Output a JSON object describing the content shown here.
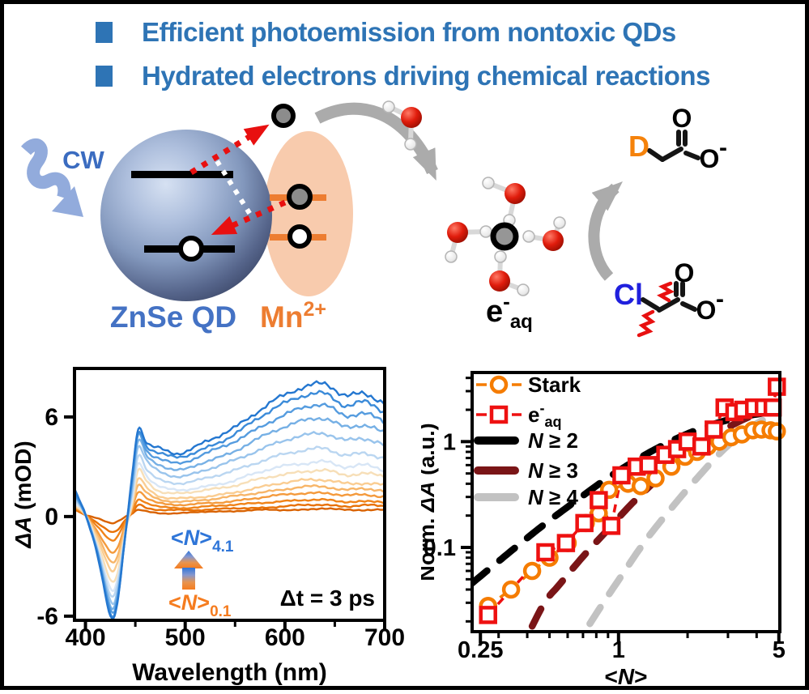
{
  "header": {
    "bullet_color": "#2E74B5",
    "items": [
      "Efficient photoemission from nontoxic QDs",
      "Hydrated electrons driving chemical reactions"
    ]
  },
  "diagram": {
    "cw_label": "CW",
    "qd_label": "ZnSe QD",
    "mn_label": "Mn",
    "mn_sup": "2+",
    "eaq_base": "e",
    "eaq_sup": "-",
    "eaq_sub": "aq",
    "product_d": "D",
    "product_o": "O",
    "product_o2": "O",
    "product_charge": "-",
    "reactant_cl": "Cl",
    "reactant_o": "O",
    "reactant_o2": "O",
    "reactant_charge": "-",
    "colors": {
      "cw_arrow": "#92ABDC",
      "label_blue": "#4472C4",
      "label_orange": "#ED7D31",
      "mn_ellipse": "#F8CBAD",
      "red_arrow": "#E81010",
      "grey_arrow": "#ABABAB",
      "d_orange": "#F5820B",
      "cl_blue": "#2020DD"
    }
  },
  "chart_data": [
    {
      "id": "transient-spectra",
      "type": "line",
      "xlabel": "Wavelength (nm)",
      "ylabel_italic": "ΔA",
      "ylabel_rest": " (mOD)",
      "xlim": [
        389,
        700
      ],
      "ylim": [
        -6.25,
        8.92
      ],
      "x_ticks": [
        {
          "label": "400",
          "v": 400
        },
        {
          "label": "500",
          "v": 500
        },
        {
          "label": "600",
          "v": 600
        },
        {
          "label": "700",
          "v": 700
        }
      ],
      "x_minor": [
        450,
        550,
        650
      ],
      "y_ticks": [
        {
          "label": "6",
          "v": 6
        },
        {
          "label": "0",
          "v": 0
        },
        {
          "label": "-6",
          "v": -6
        }
      ],
      "annotations": {
        "high": {
          "pre": "<",
          "var": "N",
          "post": ">",
          "sub": "4.1",
          "color": "#2E75D8"
        },
        "low": {
          "pre": "<",
          "var": "N",
          "post": ">",
          "sub": "0.1",
          "color": "#F57C1F"
        },
        "delay": "Δt = 3 ps"
      },
      "arrow_gradient": [
        "#2E75D8",
        "#8597D0",
        "#E8944E",
        "#F57C1F"
      ],
      "wavelengths": [
        390,
        400,
        412,
        425,
        432,
        440,
        447,
        453,
        462,
        475,
        495,
        520,
        545,
        570,
        595,
        620,
        640,
        660,
        680,
        700
      ],
      "series": [
        {
          "N": "0.1",
          "color": "#D96200",
          "values": [
            0.4,
            0.1,
            -0.1,
            -0.4,
            -0.3,
            0.0,
            0.2,
            0.4,
            0.3,
            0.2,
            0.2,
            0.3,
            0.3,
            0.4,
            0.4,
            0.4,
            0.5,
            0.4,
            0.4,
            0.4
          ]
        },
        {
          "N": "0.2",
          "color": "#E87106",
          "values": [
            0.4,
            0.1,
            -0.4,
            -0.9,
            -0.8,
            -0.2,
            0.2,
            0.7,
            0.5,
            0.4,
            0.4,
            0.4,
            0.5,
            0.5,
            0.6,
            0.7,
            0.7,
            0.6,
            0.7,
            0.6
          ]
        },
        {
          "N": "0.3",
          "color": "#F08318",
          "values": [
            0.5,
            0.1,
            -0.6,
            -1.4,
            -1.2,
            -0.3,
            0.3,
            1.0,
            0.8,
            0.6,
            0.5,
            0.6,
            0.7,
            0.8,
            0.9,
            1.0,
            1.0,
            0.9,
            0.9,
            0.9
          ]
        },
        {
          "N": "0.5",
          "color": "#F49A3C",
          "values": [
            0.5,
            0.1,
            -0.9,
            -2.1,
            -1.9,
            -0.5,
            0.5,
            1.5,
            1.1,
            0.8,
            0.7,
            0.8,
            0.9,
            1.1,
            1.3,
            1.4,
            1.4,
            1.3,
            1.3,
            1.2
          ]
        },
        {
          "N": "0.7",
          "color": "#F7B568",
          "values": [
            0.6,
            0.1,
            -1.1,
            -2.7,
            -2.4,
            -0.6,
            0.7,
            1.9,
            1.4,
            1.0,
            0.9,
            1.0,
            1.2,
            1.4,
            1.6,
            1.8,
            1.8,
            1.6,
            1.7,
            1.5
          ]
        },
        {
          "N": "0.9",
          "color": "#FACD92",
          "values": [
            0.6,
            0.1,
            -1.3,
            -3.2,
            -2.8,
            -0.8,
            0.7,
            2.3,
            1.7,
            1.2,
            1.1,
            1.2,
            1.4,
            1.7,
            2.0,
            2.2,
            2.2,
            2.0,
            2.0,
            1.9
          ]
        },
        {
          "N": "1.2",
          "color": "#F7DFB8",
          "values": [
            0.7,
            0.1,
            -1.6,
            -3.8,
            -3.4,
            -0.9,
            0.9,
            2.8,
            2.1,
            1.5,
            1.4,
            1.6,
            1.8,
            2.2,
            2.5,
            2.7,
            2.8,
            2.5,
            2.6,
            2.4
          ]
        },
        {
          "N": "1.5",
          "color": "#D8E6F6",
          "values": [
            0.8,
            0.1,
            -1.8,
            -4.3,
            -3.8,
            -1.0,
            1.1,
            3.2,
            2.4,
            1.8,
            1.6,
            1.8,
            2.1,
            2.6,
            3.0,
            3.2,
            3.3,
            3.0,
            3.1,
            2.8
          ]
        },
        {
          "N": "1.9",
          "color": "#BAD6F1",
          "values": [
            0.9,
            0.1,
            -1.9,
            -4.7,
            -4.1,
            -1.0,
            1.4,
            3.7,
            2.8,
            2.2,
            2.0,
            2.3,
            2.7,
            3.2,
            3.7,
            4.0,
            4.1,
            3.7,
            3.8,
            3.5
          ]
        },
        {
          "N": "2.4",
          "color": "#99C4EC",
          "values": [
            1.1,
            0.1,
            -2.0,
            -5.1,
            -4.5,
            -1.0,
            1.7,
            4.2,
            3.3,
            2.7,
            2.4,
            2.8,
            3.3,
            3.9,
            4.5,
            4.9,
            5.0,
            4.6,
            4.7,
            4.3
          ]
        },
        {
          "N": "2.9",
          "color": "#76B0E5",
          "values": [
            1.2,
            0.1,
            -2.1,
            -5.4,
            -4.7,
            -1.1,
            2.0,
            4.6,
            3.6,
            3.1,
            2.8,
            3.3,
            3.8,
            4.6,
            5.3,
            5.8,
            5.9,
            5.4,
            5.5,
            5.0
          ]
        },
        {
          "N": "3.4",
          "color": "#559CDF",
          "values": [
            1.3,
            0.1,
            -2.2,
            -5.6,
            -4.9,
            -1.1,
            2.2,
            4.9,
            3.9,
            3.5,
            3.2,
            3.8,
            4.4,
            5.2,
            6.0,
            6.6,
            6.7,
            6.1,
            6.2,
            5.7
          ]
        },
        {
          "N": "3.8",
          "color": "#3B8BD9",
          "values": [
            1.4,
            0.1,
            -2.2,
            -5.8,
            -5.1,
            -1.1,
            2.4,
            5.1,
            4.2,
            3.8,
            3.6,
            4.1,
            4.8,
            5.8,
            6.7,
            7.3,
            7.4,
            6.7,
            6.9,
            6.3
          ]
        },
        {
          "N": "4.1",
          "color": "#2477D0",
          "values": [
            1.5,
            0.1,
            -2.3,
            -6.0,
            -5.2,
            -1.1,
            2.6,
            5.3,
            4.4,
            4.1,
            3.8,
            4.5,
            5.2,
            6.2,
            7.2,
            7.8,
            8.0,
            7.3,
            7.4,
            6.8
          ]
        }
      ]
    },
    {
      "id": "power-scaling",
      "type": "scatter",
      "xscale": "log",
      "yscale": "log",
      "xlabel": {
        "pre": "<",
        "var": "N",
        "post": ">"
      },
      "ylabel_pre": "Norm. ",
      "ylabel_italic": "ΔA",
      "ylabel_rest": " (a.u.)",
      "xlim": [
        0.23,
        5.05
      ],
      "ylim": [
        0.016,
        4.5
      ],
      "x_ticks": [
        {
          "label": "0.25",
          "v": 0.25
        },
        {
          "label": "1",
          "v": 1
        },
        {
          "label": "5",
          "v": 5
        }
      ],
      "x_minor": [
        0.3,
        0.4,
        0.5,
        0.6,
        0.7,
        0.8,
        0.9,
        2,
        3,
        4
      ],
      "y_ticks": [
        {
          "label": "1",
          "v": 1
        },
        {
          "label": "0.1",
          "v": 0.1
        }
      ],
      "y_minor": [
        0.02,
        0.03,
        0.04,
        0.05,
        0.06,
        0.07,
        0.08,
        0.09,
        0.2,
        0.3,
        0.4,
        0.5,
        0.6,
        0.7,
        0.8,
        0.9,
        2,
        3,
        4
      ],
      "series": [
        {
          "name": "Stark",
          "kind": "data",
          "marker": "circle",
          "color": "#F57C00",
          "points": [
            [
              0.27,
              0.028
            ],
            [
              0.34,
              0.04
            ],
            [
              0.42,
              0.06
            ],
            [
              0.5,
              0.08
            ],
            [
              0.6,
              0.11
            ],
            [
              0.72,
              0.17
            ],
            [
              0.82,
              0.21
            ],
            [
              0.91,
              0.35
            ],
            [
              1.1,
              0.4
            ],
            [
              1.25,
              0.38
            ],
            [
              1.45,
              0.45
            ],
            [
              1.7,
              0.58
            ],
            [
              1.95,
              0.72
            ],
            [
              2.2,
              0.8
            ],
            [
              2.45,
              0.9
            ],
            [
              2.75,
              1.0
            ],
            [
              3.1,
              1.1
            ],
            [
              3.45,
              1.17
            ],
            [
              3.85,
              1.28
            ],
            [
              4.2,
              1.3
            ],
            [
              4.6,
              1.28
            ],
            [
              4.9,
              1.25
            ]
          ]
        },
        {
          "name": "e-aq",
          "kind": "data",
          "marker": "square",
          "color": "#EE1111",
          "points": [
            [
              0.27,
              0.023
            ],
            [
              0.48,
              0.09
            ],
            [
              0.59,
              0.11
            ],
            [
              0.71,
              0.17
            ],
            [
              0.82,
              0.28
            ],
            [
              0.93,
              0.16
            ],
            [
              1.03,
              0.48
            ],
            [
              1.2,
              0.58
            ],
            [
              1.35,
              0.6
            ],
            [
              1.6,
              0.75
            ],
            [
              1.8,
              0.85
            ],
            [
              2.0,
              1.0
            ],
            [
              2.3,
              0.9
            ],
            [
              2.6,
              1.3
            ],
            [
              2.9,
              2.1
            ],
            [
              3.2,
              1.9
            ],
            [
              3.5,
              2.0
            ],
            [
              3.9,
              2.1
            ],
            [
              4.3,
              2.1
            ],
            [
              4.7,
              2.1
            ],
            [
              4.9,
              3.3
            ]
          ]
        },
        {
          "name": "N >= 2",
          "kind": "guide",
          "color": "#000000",
          "points": [
            [
              0.23,
              0.046
            ],
            [
              0.3,
              0.074
            ],
            [
              0.4,
              0.123
            ],
            [
              0.5,
              0.18
            ],
            [
              0.65,
              0.274
            ],
            [
              0.85,
              0.419
            ],
            [
              1.1,
              0.602
            ],
            [
              1.4,
              0.816
            ],
            [
              1.8,
              1.074
            ],
            [
              2.3,
              1.338
            ],
            [
              3.0,
              1.602
            ],
            [
              4.0,
              1.817
            ],
            [
              5.0,
              1.919
            ]
          ]
        },
        {
          "name": "N >= 3",
          "kind": "guide",
          "color": "#7A1517",
          "points": [
            [
              0.42,
              0.018
            ],
            [
              0.48,
              0.031
            ],
            [
              0.55,
              0.044
            ],
            [
              0.7,
              0.082
            ],
            [
              0.9,
              0.148
            ],
            [
              1.15,
              0.263
            ],
            [
              1.5,
              0.453
            ],
            [
              1.95,
              0.733
            ],
            [
              2.5,
              1.08
            ],
            [
              3.2,
              1.47
            ],
            [
              4.0,
              1.83
            ],
            [
              5.0,
              2.1
            ]
          ]
        },
        {
          "name": "N >= 4",
          "kind": "guide",
          "color": "#C2C2C2",
          "points": [
            [
              0.75,
              0.019
            ],
            [
              0.85,
              0.029
            ],
            [
              1.0,
              0.049
            ],
            [
              1.3,
              0.113
            ],
            [
              1.7,
              0.235
            ],
            [
              2.2,
              0.452
            ],
            [
              2.9,
              0.858
            ],
            [
              3.7,
              1.32
            ],
            [
              4.5,
              1.71
            ],
            [
              5.0,
              1.91
            ]
          ]
        }
      ],
      "legend": [
        {
          "kind": "data",
          "marker": "circle",
          "color": "#F57C00",
          "label": "Stark"
        },
        {
          "kind": "data",
          "marker": "square",
          "color": "#EE1111",
          "label_base": "e",
          "label_sup": "-",
          "label_sub": "aq"
        },
        {
          "kind": "guide",
          "color": "#000000",
          "label_var": "N",
          "label_rest": " ≥ 2"
        },
        {
          "kind": "guide",
          "color": "#7A1517",
          "label_var": "N",
          "label_rest": " ≥ 3"
        },
        {
          "kind": "guide",
          "color": "#C2C2C2",
          "label_var": "N",
          "label_rest": " ≥ 4"
        }
      ]
    }
  ]
}
